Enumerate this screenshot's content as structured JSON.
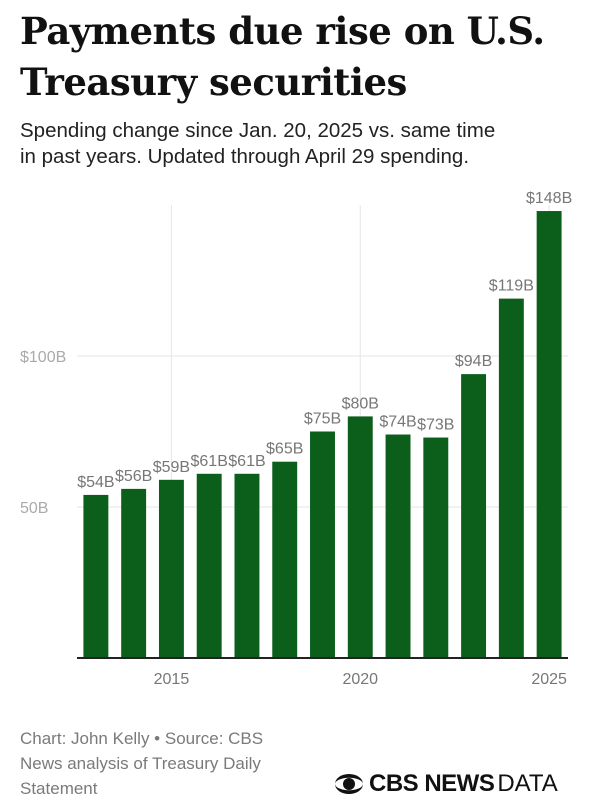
{
  "header": {
    "title_line1": "Payments due rise on U.S.",
    "title_line2": "Treasury securities",
    "subtitle_line1": "Spending change since Jan. 20, 2025 vs. same time",
    "subtitle_line2": "in past years. Updated through April 29 spending."
  },
  "footer": {
    "credit_line1": "Chart: John Kelly • Source: CBS",
    "credit_line2": "News analysis of Treasury Daily",
    "credit_line3": "Statement",
    "brand_bold": "CBS NEWS",
    "brand_light": "DATA"
  },
  "colors": {
    "bar": "#0b5f1b",
    "grid": "#e6e6e6",
    "axis": "#222222",
    "label": "#777777",
    "ytick": "#aaaaaa"
  },
  "chart_data": {
    "type": "bar",
    "x": [
      2013,
      2014,
      2015,
      2016,
      2017,
      2018,
      2019,
      2020,
      2021,
      2022,
      2023,
      2024,
      2025
    ],
    "values": [
      54,
      56,
      59,
      61,
      61,
      65,
      75,
      80,
      74,
      73,
      94,
      119,
      148
    ],
    "data_labels": [
      "$54B",
      "$56B",
      "$59B",
      "$61B",
      "$61B",
      "$65B",
      "$75B",
      "$80B",
      "$74B",
      "$73B",
      "$94B",
      "$119B",
      "$148B"
    ],
    "x_ticks": [
      2015,
      2020,
      2025
    ],
    "x_tick_labels": [
      "2015",
      "2020",
      "2025"
    ],
    "y_ticks": [
      50,
      100
    ],
    "y_tick_labels": [
      "50B",
      "$100B"
    ],
    "ylim": [
      0,
      150
    ],
    "unit": "billions of dollars",
    "grid": true
  }
}
